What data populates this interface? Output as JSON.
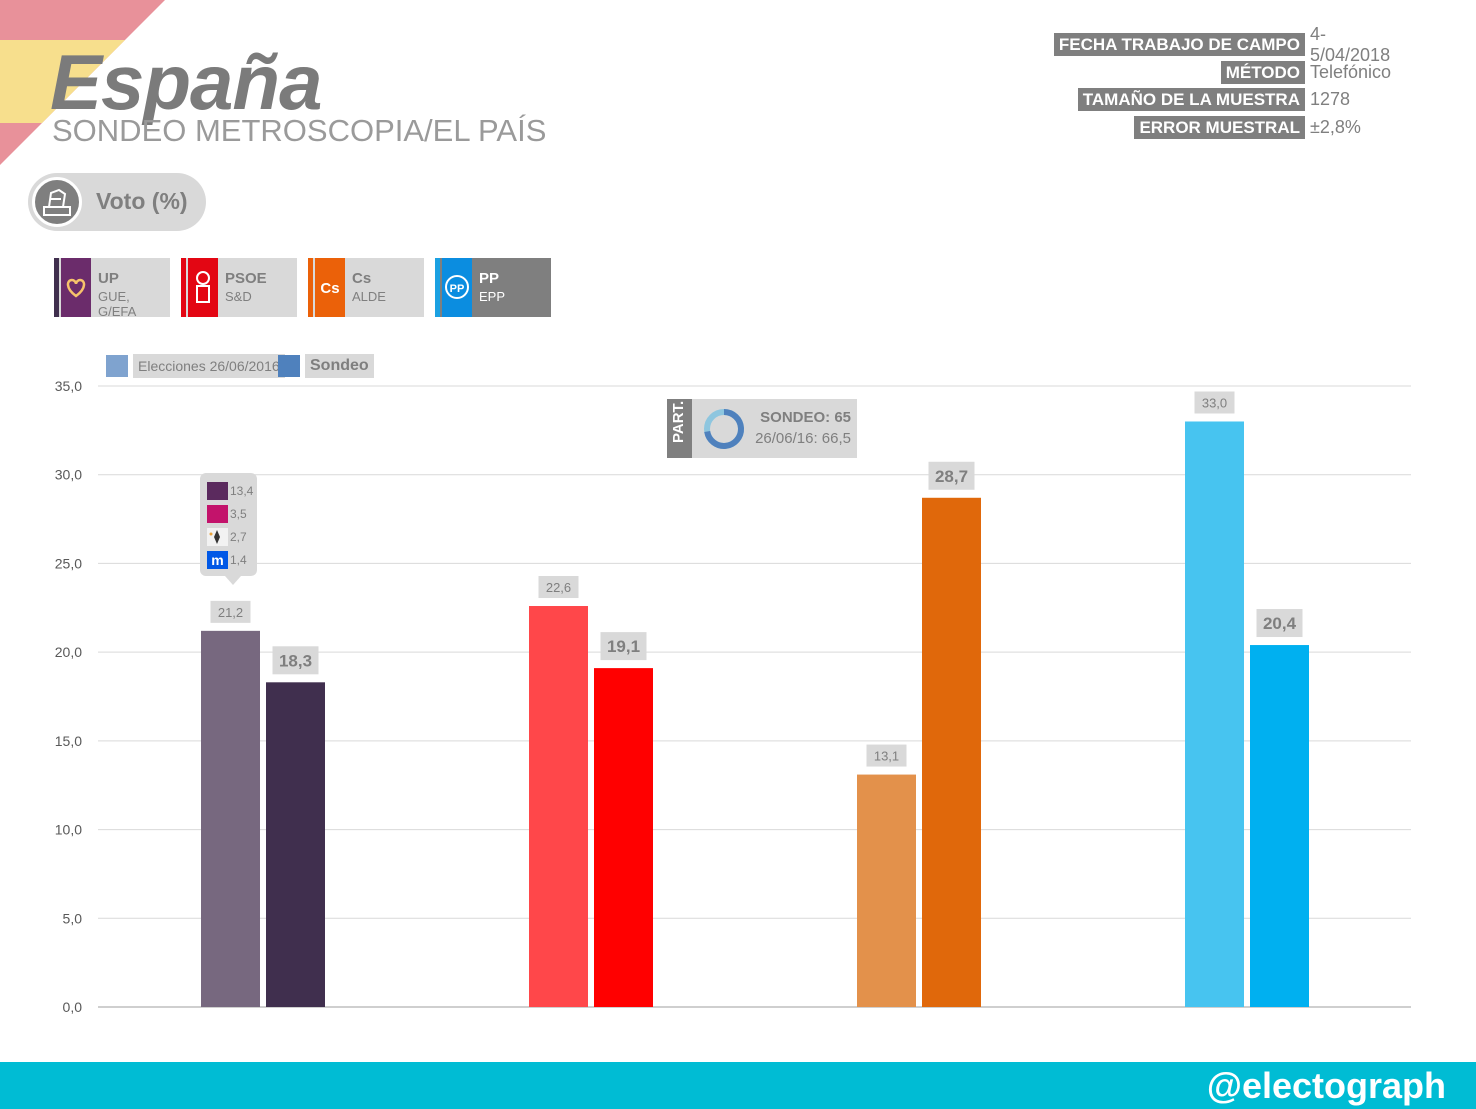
{
  "header": {
    "title": "España",
    "subtitle": "SONDEO METROSCOPIA/EL PAÍS"
  },
  "meta": [
    {
      "key": "FECHA TRABAJO DE CAMPO",
      "value": "4-5/04/2018"
    },
    {
      "key": "MÉTODO",
      "value": "Telefónico"
    },
    {
      "key": "TAMAÑO DE LA MUESTRA",
      "value": "1278"
    },
    {
      "key": "ERROR MUESTRAL",
      "value": "±2,8%"
    }
  ],
  "voto": {
    "label": "Voto (%)"
  },
  "parties": [
    {
      "name": "UP",
      "group": "GUE, G/EFA"
    },
    {
      "name": "PSOE",
      "group": "S&D"
    },
    {
      "name": "Cs",
      "group": "ALDE",
      "logo_text": "Cs"
    },
    {
      "name": "PP",
      "group": "EPP",
      "logo_text": "PP"
    }
  ],
  "legend": {
    "elecciones": "Elecciones 26/06/2016",
    "sondeo": "Sondeo"
  },
  "participation": {
    "tag": "PART.",
    "sondeo": "SONDEO: 65",
    "elecciones": "26/06/16: 66,5"
  },
  "tooltip": [
    {
      "value": "13,4"
    },
    {
      "value": "3,5"
    },
    {
      "value": "2,7"
    },
    {
      "value": "1,4"
    }
  ],
  "colors": {
    "up_prev": "#77687f",
    "up_now": "#402f4e",
    "psoe_prev": "#ff474a",
    "psoe_now": "#ff0000",
    "cs_prev": "#e3914b",
    "cs_now": "#e0680b",
    "pp_prev": "#47c4f0",
    "pp_now": "#00b0f0",
    "footer": "#00bcd4"
  },
  "chart_data": {
    "type": "bar",
    "categories": [
      "UP",
      "PSOE",
      "Cs",
      "PP"
    ],
    "series": [
      {
        "name": "Elecciones 26/06/2016",
        "values": [
          21.2,
          22.6,
          13.1,
          33.0
        ],
        "labels": [
          "21,2",
          "22,6",
          "13,1",
          "33,0"
        ]
      },
      {
        "name": "Sondeo",
        "values": [
          18.3,
          19.1,
          28.7,
          20.4
        ],
        "labels": [
          "18,3",
          "19,1",
          "28,7",
          "20,4"
        ]
      }
    ],
    "yticks": [
      "0,0",
      "5,0",
      "10,0",
      "15,0",
      "20,0",
      "25,0",
      "30,0",
      "35,0"
    ],
    "ylim": [
      0,
      35
    ],
    "grid": true,
    "legend": "top-left"
  },
  "footer": {
    "handle": "@electograph"
  }
}
